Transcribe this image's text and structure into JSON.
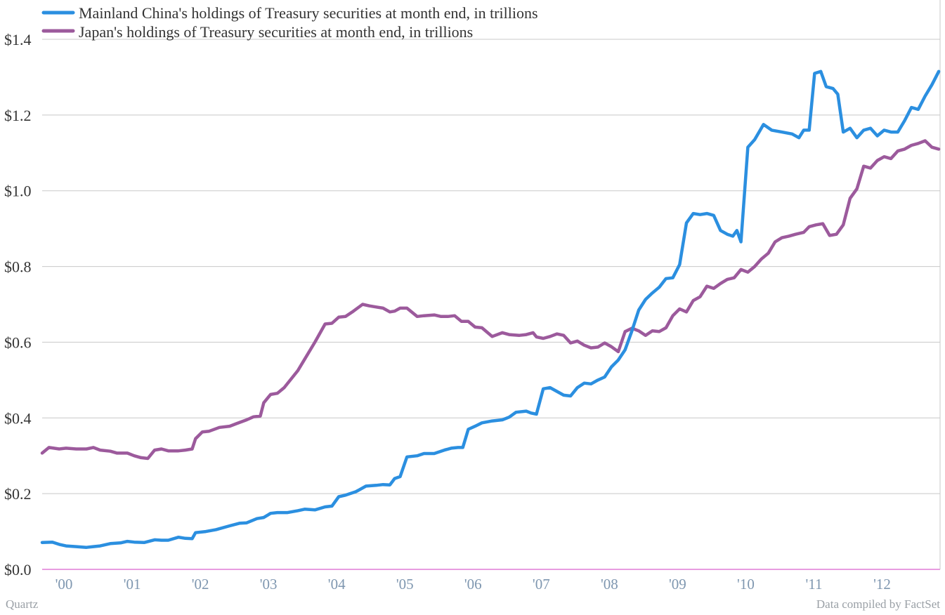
{
  "source_left": "Quartz",
  "source_right": "Data compiled by FactSet",
  "chart_data": {
    "type": "line",
    "title": "",
    "xlabel": "",
    "ylabel": "",
    "y_ticks": [
      0.0,
      0.2,
      0.4,
      0.6,
      0.8,
      1.0,
      1.2,
      1.4
    ],
    "y_tick_labels": [
      "$0.0",
      "$0.2",
      "$0.4",
      "$0.6",
      "$0.8",
      "$1.0",
      "$1.2",
      "$1.4"
    ],
    "ylim": [
      0,
      1.4
    ],
    "xlim": [
      1999.75,
      2012.92
    ],
    "x_ticks": [
      2000,
      2001,
      2002,
      2003,
      2004,
      2005,
      2006,
      2007,
      2008,
      2009,
      2010,
      2011,
      2012
    ],
    "x_tick_labels": [
      "'00",
      "'01",
      "'02",
      "'03",
      "'04",
      "'05",
      "'06",
      "'07",
      "'08",
      "'09",
      "'10",
      "'11",
      "'12"
    ],
    "grid": true,
    "legend_position": "top-left",
    "series": [
      {
        "name": "Mainland China's holdings of Treasury securities at month end, in trillions",
        "color": "#2b8fe0",
        "x": [
          1999.75,
          1999.9,
          2000.0,
          2000.1,
          2000.25,
          2000.4,
          2000.5,
          2000.6,
          2000.75,
          2000.9,
          2001.0,
          2001.1,
          2001.25,
          2001.4,
          2001.5,
          2001.6,
          2001.75,
          2001.85,
          2001.95,
          2002.0,
          2002.15,
          2002.3,
          2002.5,
          2002.65,
          2002.75,
          2002.9,
          2003.0,
          2003.1,
          2003.2,
          2003.35,
          2003.5,
          2003.6,
          2003.75,
          2003.9,
          2004.0,
          2004.1,
          2004.2,
          2004.35,
          2004.5,
          2004.65,
          2004.75,
          2004.85,
          2004.92,
          2005.0,
          2005.1,
          2005.25,
          2005.35,
          2005.5,
          2005.65,
          2005.75,
          2005.85,
          2005.92,
          2006.0,
          2006.1,
          2006.2,
          2006.35,
          2006.5,
          2006.6,
          2006.7,
          2006.85,
          2006.92,
          2007.0,
          2007.1,
          2007.2,
          2007.3,
          2007.4,
          2007.5,
          2007.6,
          2007.7,
          2007.8,
          2007.9,
          2008.0,
          2008.1,
          2008.2,
          2008.3,
          2008.4,
          2008.5,
          2008.6,
          2008.7,
          2008.8,
          2008.9,
          2009.0,
          2009.1,
          2009.2,
          2009.3,
          2009.4,
          2009.5,
          2009.6,
          2009.7,
          2009.8,
          2009.88,
          2009.94,
          2010.0,
          2010.1,
          2010.2,
          2010.33,
          2010.45,
          2010.6,
          2010.75,
          2010.85,
          2010.92,
          2011.0,
          2011.08,
          2011.17,
          2011.25,
          2011.35,
          2011.42,
          2011.5,
          2011.6,
          2011.7,
          2011.8,
          2011.9,
          2012.0,
          2012.1,
          2012.2,
          2012.3,
          2012.4,
          2012.5,
          2012.6,
          2012.7,
          2012.8,
          2012.9
        ],
        "values": [
          0.071,
          0.072,
          0.066,
          0.062,
          0.06,
          0.058,
          0.06,
          0.062,
          0.068,
          0.07,
          0.074,
          0.072,
          0.071,
          0.078,
          0.077,
          0.077,
          0.085,
          0.082,
          0.081,
          0.097,
          0.1,
          0.105,
          0.115,
          0.122,
          0.123,
          0.134,
          0.137,
          0.148,
          0.15,
          0.15,
          0.155,
          0.159,
          0.157,
          0.165,
          0.167,
          0.192,
          0.196,
          0.205,
          0.22,
          0.222,
          0.224,
          0.223,
          0.24,
          0.245,
          0.297,
          0.3,
          0.306,
          0.306,
          0.315,
          0.32,
          0.322,
          0.322,
          0.37,
          0.378,
          0.387,
          0.392,
          0.395,
          0.402,
          0.415,
          0.418,
          0.413,
          0.41,
          0.477,
          0.48,
          0.47,
          0.46,
          0.458,
          0.48,
          0.492,
          0.49,
          0.5,
          0.508,
          0.535,
          0.553,
          0.58,
          0.63,
          0.685,
          0.713,
          0.73,
          0.745,
          0.768,
          0.77,
          0.805,
          0.915,
          0.94,
          0.937,
          0.94,
          0.935,
          0.895,
          0.885,
          0.88,
          0.895,
          0.865,
          1.115,
          1.135,
          1.175,
          1.16,
          1.155,
          1.15,
          1.14,
          1.16,
          1.16,
          1.31,
          1.315,
          1.275,
          1.27,
          1.255,
          1.155,
          1.165,
          1.14,
          1.16,
          1.165,
          1.145,
          1.16,
          1.155,
          1.155,
          1.185,
          1.22,
          1.215,
          1.25,
          1.28,
          1.315
        ]
      },
      {
        "name": "Japan's holdings of Treasury securities at month end, in trillions",
        "color": "#9c5a9c",
        "x": [
          1999.75,
          1999.85,
          2000.0,
          2000.1,
          2000.25,
          2000.4,
          2000.5,
          2000.6,
          2000.75,
          2000.85,
          2001.0,
          2001.1,
          2001.2,
          2001.3,
          2001.4,
          2001.5,
          2001.6,
          2001.75,
          2001.85,
          2001.95,
          2002.0,
          2002.1,
          2002.2,
          2002.35,
          2002.5,
          2002.6,
          2002.75,
          2002.85,
          2002.95,
          2003.0,
          2003.1,
          2003.2,
          2003.3,
          2003.5,
          2003.6,
          2003.75,
          2003.9,
          2004.0,
          2004.1,
          2004.2,
          2004.3,
          2004.45,
          2004.55,
          2004.65,
          2004.75,
          2004.85,
          2004.92,
          2005.0,
          2005.1,
          2005.25,
          2005.35,
          2005.5,
          2005.6,
          2005.7,
          2005.8,
          2005.9,
          2006.0,
          2006.1,
          2006.2,
          2006.35,
          2006.5,
          2006.6,
          2006.75,
          2006.85,
          2006.95,
          2007.0,
          2007.1,
          2007.2,
          2007.3,
          2007.4,
          2007.5,
          2007.6,
          2007.7,
          2007.8,
          2007.9,
          2008.0,
          2008.1,
          2008.2,
          2008.3,
          2008.4,
          2008.5,
          2008.6,
          2008.7,
          2008.8,
          2008.9,
          2009.0,
          2009.1,
          2009.2,
          2009.3,
          2009.4,
          2009.5,
          2009.6,
          2009.7,
          2009.8,
          2009.9,
          2010.0,
          2010.1,
          2010.2,
          2010.3,
          2010.4,
          2010.5,
          2010.6,
          2010.7,
          2010.8,
          2010.92,
          2011.0,
          2011.1,
          2011.2,
          2011.3,
          2011.4,
          2011.5,
          2011.6,
          2011.7,
          2011.8,
          2011.9,
          2012.0,
          2012.1,
          2012.2,
          2012.3,
          2012.4,
          2012.5,
          2012.6,
          2012.7,
          2012.8,
          2012.9
        ],
        "values": [
          0.307,
          0.322,
          0.318,
          0.32,
          0.318,
          0.318,
          0.322,
          0.315,
          0.312,
          0.307,
          0.307,
          0.3,
          0.295,
          0.293,
          0.315,
          0.318,
          0.313,
          0.313,
          0.315,
          0.318,
          0.345,
          0.363,
          0.365,
          0.375,
          0.378,
          0.385,
          0.395,
          0.403,
          0.405,
          0.44,
          0.462,
          0.465,
          0.48,
          0.525,
          0.555,
          0.6,
          0.648,
          0.65,
          0.666,
          0.668,
          0.68,
          0.7,
          0.696,
          0.693,
          0.69,
          0.68,
          0.682,
          0.69,
          0.69,
          0.668,
          0.67,
          0.672,
          0.668,
          0.668,
          0.67,
          0.655,
          0.655,
          0.64,
          0.638,
          0.615,
          0.625,
          0.62,
          0.618,
          0.62,
          0.625,
          0.614,
          0.61,
          0.615,
          0.622,
          0.618,
          0.598,
          0.603,
          0.592,
          0.585,
          0.587,
          0.598,
          0.588,
          0.575,
          0.628,
          0.637,
          0.63,
          0.618,
          0.63,
          0.628,
          0.638,
          0.67,
          0.688,
          0.68,
          0.71,
          0.72,
          0.748,
          0.742,
          0.755,
          0.766,
          0.77,
          0.792,
          0.785,
          0.8,
          0.82,
          0.835,
          0.865,
          0.876,
          0.88,
          0.885,
          0.89,
          0.905,
          0.91,
          0.913,
          0.882,
          0.885,
          0.91,
          0.98,
          1.005,
          1.065,
          1.06,
          1.08,
          1.09,
          1.085,
          1.105,
          1.11,
          1.12,
          1.125,
          1.132,
          1.115,
          1.11
        ]
      }
    ]
  }
}
